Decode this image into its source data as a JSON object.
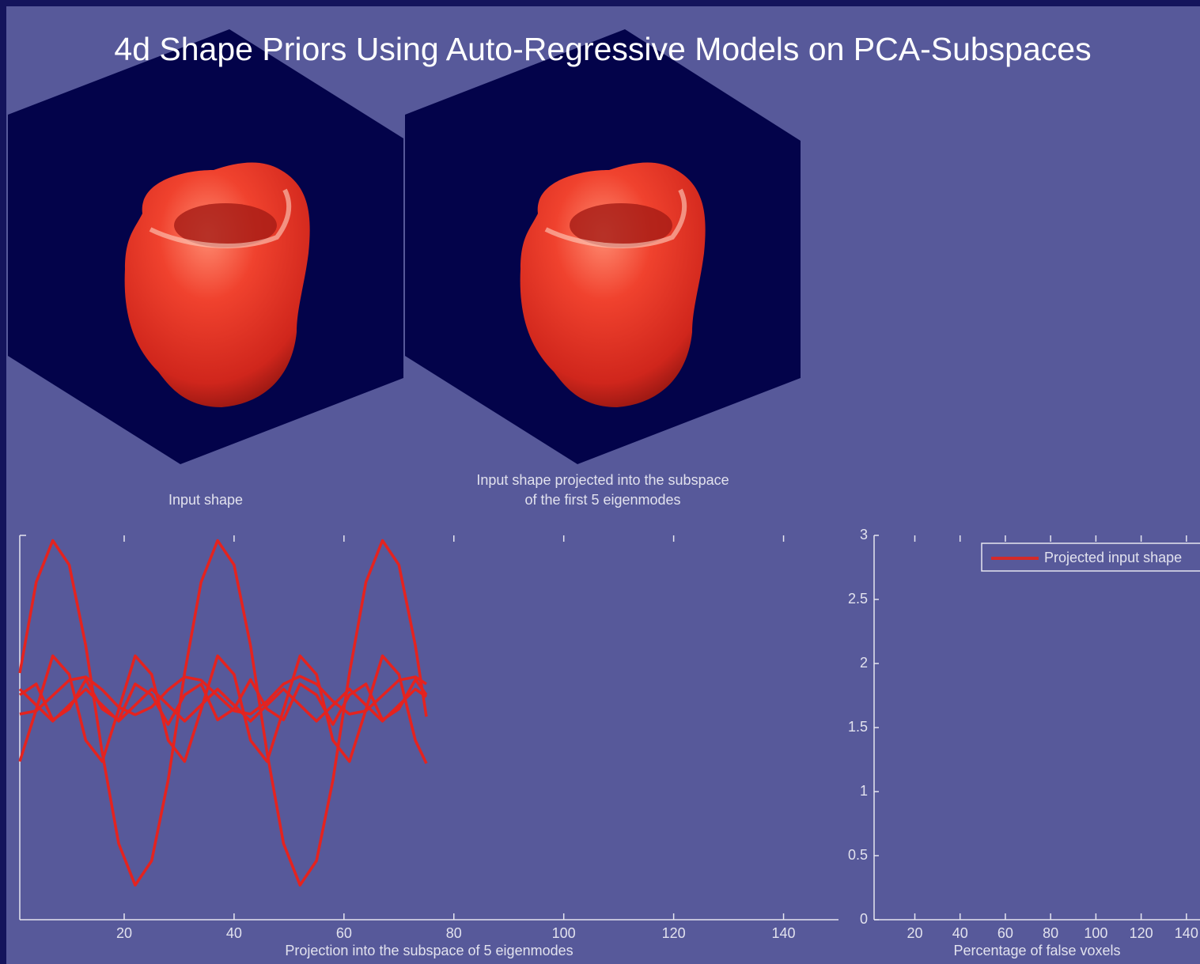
{
  "title": "4d Shape Priors Using Auto-Regressive Models on PCA-Subspaces",
  "panels": [
    {
      "caption": [
        "Input shape"
      ]
    },
    {
      "caption": [
        "Input shape projected into the subspace",
        "of the first 5 eigenmodes"
      ]
    }
  ],
  "chart_data": [
    {
      "type": "line",
      "xlabel": "Projection into the subspace of 5 eigenmodes",
      "x": [
        1,
        4,
        7,
        10,
        13,
        16,
        19,
        22,
        25,
        28,
        31,
        34,
        37,
        40,
        43,
        46,
        49,
        52,
        55,
        58,
        61,
        64,
        67,
        70,
        73,
        75
      ],
      "series": [
        {
          "color": "#e4231f",
          "values": [
            0.85,
            2.27,
            2.92,
            2.54,
            1.28,
            -0.39,
            -1.81,
            -2.46,
            -2.08,
            -0.82,
            0.85,
            2.27,
            2.92,
            2.54,
            1.28,
            -0.39,
            -1.81,
            -2.46,
            -2.08,
            -0.82,
            0.85,
            2.27,
            2.92,
            2.54,
            1.28,
            0.17
          ]
        },
        {
          "color": "#e4231f",
          "values": [
            -0.53,
            0.28,
            1.12,
            0.83,
            -0.2,
            -0.53,
            0.28,
            1.12,
            0.83,
            -0.2,
            -0.53,
            0.28,
            1.12,
            0.83,
            -0.2,
            -0.53,
            0.28,
            1.12,
            0.83,
            -0.2,
            -0.53,
            0.28,
            1.12,
            0.83,
            -0.2,
            -0.56
          ]
        },
        {
          "color": "#e4231f",
          "values": [
            0.51,
            0.68,
            0.12,
            0.29,
            0.75,
            0.29,
            0.12,
            0.68,
            0.51,
            0.05,
            0.51,
            0.68,
            0.12,
            0.29,
            0.75,
            0.29,
            0.12,
            0.68,
            0.51,
            0.05,
            0.51,
            0.68,
            0.12,
            0.29,
            0.75,
            0.51
          ]
        },
        {
          "color": "#e4231f",
          "values": [
            0.21,
            0.26,
            0.5,
            0.74,
            0.79,
            0.59,
            0.32,
            0.2,
            0.32,
            0.59,
            0.79,
            0.74,
            0.5,
            0.26,
            0.21,
            0.41,
            0.68,
            0.8,
            0.68,
            0.41,
            0.21,
            0.26,
            0.5,
            0.74,
            0.79,
            0.68
          ]
        },
        {
          "color": "#e4231f",
          "values": [
            0.6,
            0.35,
            0.1,
            0.35,
            0.6,
            0.35,
            0.1,
            0.35,
            0.6,
            0.35,
            0.1,
            0.35,
            0.6,
            0.35,
            0.1,
            0.35,
            0.6,
            0.35,
            0.1,
            0.35,
            0.6,
            0.35,
            0.1,
            0.35,
            0.6,
            0.48
          ]
        }
      ],
      "xlim": [
        1,
        150
      ],
      "xticks": [
        20,
        40,
        60,
        80,
        100,
        120,
        140
      ],
      "ylim": [
        -3,
        3
      ]
    },
    {
      "type": "line",
      "xlabel": "Percentage of false voxels",
      "x": [],
      "series": [
        {
          "name": "Projected input shape",
          "color": "#d42a2a",
          "values": []
        }
      ],
      "xlim": [
        2,
        146
      ],
      "xticks": [
        20,
        40,
        60,
        80,
        100,
        120,
        140
      ],
      "ylim": [
        0,
        3
      ],
      "yticks": [
        0,
        0.5,
        1,
        1.5,
        2,
        2.5,
        3
      ],
      "legend": "upper right"
    }
  ]
}
